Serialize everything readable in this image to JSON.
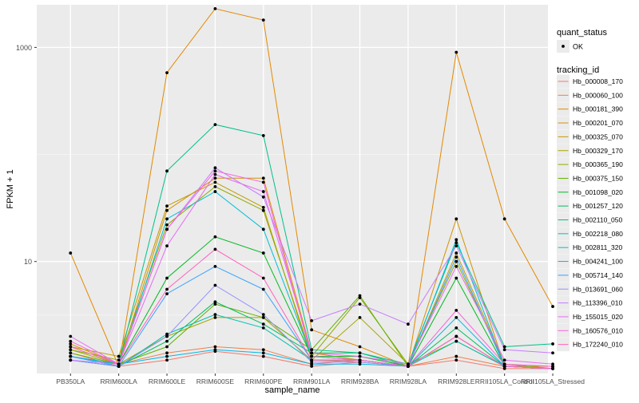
{
  "chart_data": {
    "type": "line",
    "title": "",
    "xlabel": "sample_name",
    "ylabel": "FPKM + 1",
    "y_scale": "log10",
    "ylim": [
      0.9,
      2500
    ],
    "y_ticks": [
      10,
      1000
    ],
    "y_tick_labels": [
      "10",
      "1000"
    ],
    "categories": [
      "PB350LA",
      "RRIM600LA",
      "RRIM600LE",
      "RRIM600SE",
      "RRIM600PE",
      "RRIM901LA",
      "RRIM928BA",
      "RRIM928LA",
      "RRIM928LE",
      "RRII105LA_Control",
      "RRII105LA_Stressed"
    ],
    "grid": true,
    "panel_background": "#EBEBEB",
    "legend_placement": "right",
    "point_color": "#000000",
    "shape_legend": {
      "title": "quant_status",
      "entries": [
        "OK"
      ]
    },
    "color_legend_title": "tracking_id",
    "series": [
      {
        "name": "Hb_000008_170",
        "color": "#F8766D",
        "values": [
          1.4,
          1.05,
          1.2,
          1.45,
          1.3,
          1.05,
          1.15,
          1.05,
          1.2,
          1.0,
          1.0
        ]
      },
      {
        "name": "Hb_000060_100",
        "color": "#EF7F49",
        "values": [
          1.3,
          1.1,
          1.4,
          1.6,
          1.5,
          1.1,
          1.2,
          1.05,
          1.3,
          1.05,
          1.05
        ]
      },
      {
        "name": "Hb_000181_390",
        "color": "#E38900",
        "values": [
          12,
          1.05,
          580,
          2300,
          1800,
          2.3,
          1.6,
          1.05,
          900,
          25,
          3.8
        ]
      },
      {
        "name": "Hb_000201_070",
        "color": "#D39200",
        "values": [
          1.7,
          1.1,
          30,
          60,
          60,
          1.4,
          1.2,
          1.05,
          25,
          1.05,
          1.0
        ]
      },
      {
        "name": "Hb_000325_070",
        "color": "#C09B00",
        "values": [
          1.6,
          1.3,
          33,
          55,
          32,
          1.2,
          1.15,
          1.05,
          12,
          1.1,
          1.0
        ]
      },
      {
        "name": "Hb_000329_170",
        "color": "#A9A400",
        "values": [
          1.5,
          1.1,
          2.0,
          3.0,
          3.0,
          1.2,
          3.0,
          1.1,
          1.8,
          1.05,
          1.0
        ]
      },
      {
        "name": "Hb_000365_190",
        "color": "#8EAB00",
        "values": [
          1.5,
          1.2,
          22,
          50,
          30,
          1.3,
          4.6,
          1.1,
          10,
          1.1,
          1.0
        ]
      },
      {
        "name": "Hb_000375_150",
        "color": "#64B200",
        "values": [
          1.4,
          1.1,
          1.6,
          4.0,
          3.0,
          1.5,
          4.8,
          1.05,
          2.0,
          1.05,
          1.0
        ]
      },
      {
        "name": "Hb_001098_020",
        "color": "#00B81F",
        "values": [
          1.3,
          1.1,
          7.0,
          17,
          12,
          1.3,
          1.3,
          1.05,
          7.0,
          1.05,
          1.0
        ]
      },
      {
        "name": "Hb_001257_120",
        "color": "#00BD5C",
        "values": [
          1.2,
          1.05,
          1.8,
          4.2,
          2.6,
          1.4,
          1.4,
          1.05,
          2.4,
          1.05,
          1.0
        ]
      },
      {
        "name": "Hb_002110_050",
        "color": "#00C08B",
        "values": [
          1.3,
          1.1,
          70,
          190,
          150,
          1.5,
          1.4,
          1.1,
          15,
          1.6,
          1.7
        ]
      },
      {
        "name": "Hb_002218_080",
        "color": "#00C1B2",
        "values": [
          1.2,
          1.05,
          2.1,
          3.2,
          2.4,
          1.2,
          1.2,
          1.05,
          1.8,
          1.05,
          1.0
        ]
      },
      {
        "name": "Hb_002811_320",
        "color": "#00BFD4",
        "values": [
          1.2,
          1.05,
          25,
          45,
          20,
          1.3,
          1.2,
          1.05,
          16,
          1.05,
          1.0
        ]
      },
      {
        "name": "Hb_004241_100",
        "color": "#00B8E7",
        "values": [
          1.3,
          1.1,
          1.3,
          1.5,
          1.4,
          1.1,
          1.1,
          1.05,
          3.0,
          1.05,
          1.0
        ]
      },
      {
        "name": "Hb_005714_140",
        "color": "#35A2FF",
        "values": [
          1.3,
          1.05,
          5.0,
          9.0,
          5.5,
          1.2,
          1.2,
          1.05,
          11,
          1.05,
          1.0
        ]
      },
      {
        "name": "Hb_013691_060",
        "color": "#9590FF",
        "values": [
          1.2,
          1.05,
          2.0,
          6.0,
          3.2,
          1.15,
          1.15,
          1.05,
          2.0,
          1.05,
          1.0
        ]
      },
      {
        "name": "Hb_113396_010",
        "color": "#C77CFF",
        "values": [
          1.2,
          1.1,
          20,
          75,
          40,
          2.8,
          4.0,
          2.6,
          14,
          1.5,
          1.4
        ]
      },
      {
        "name": "Hb_155015_020",
        "color": "#E76BF3",
        "values": [
          2.0,
          1.1,
          14,
          65,
          45,
          1.4,
          1.3,
          1.1,
          9.0,
          1.2,
          1.1
        ]
      },
      {
        "name": "Hb_160576_010",
        "color": "#FA62DB",
        "values": [
          1.8,
          1.1,
          20,
          70,
          55,
          1.3,
          1.2,
          1.05,
          3.5,
          1.1,
          1.05
        ]
      },
      {
        "name": "Hb_172240_010",
        "color": "#FF62BC",
        "values": [
          1.6,
          1.1,
          5.5,
          13,
          7.0,
          1.2,
          1.2,
          1.05,
          2.0,
          1.05,
          1.0
        ]
      }
    ]
  }
}
